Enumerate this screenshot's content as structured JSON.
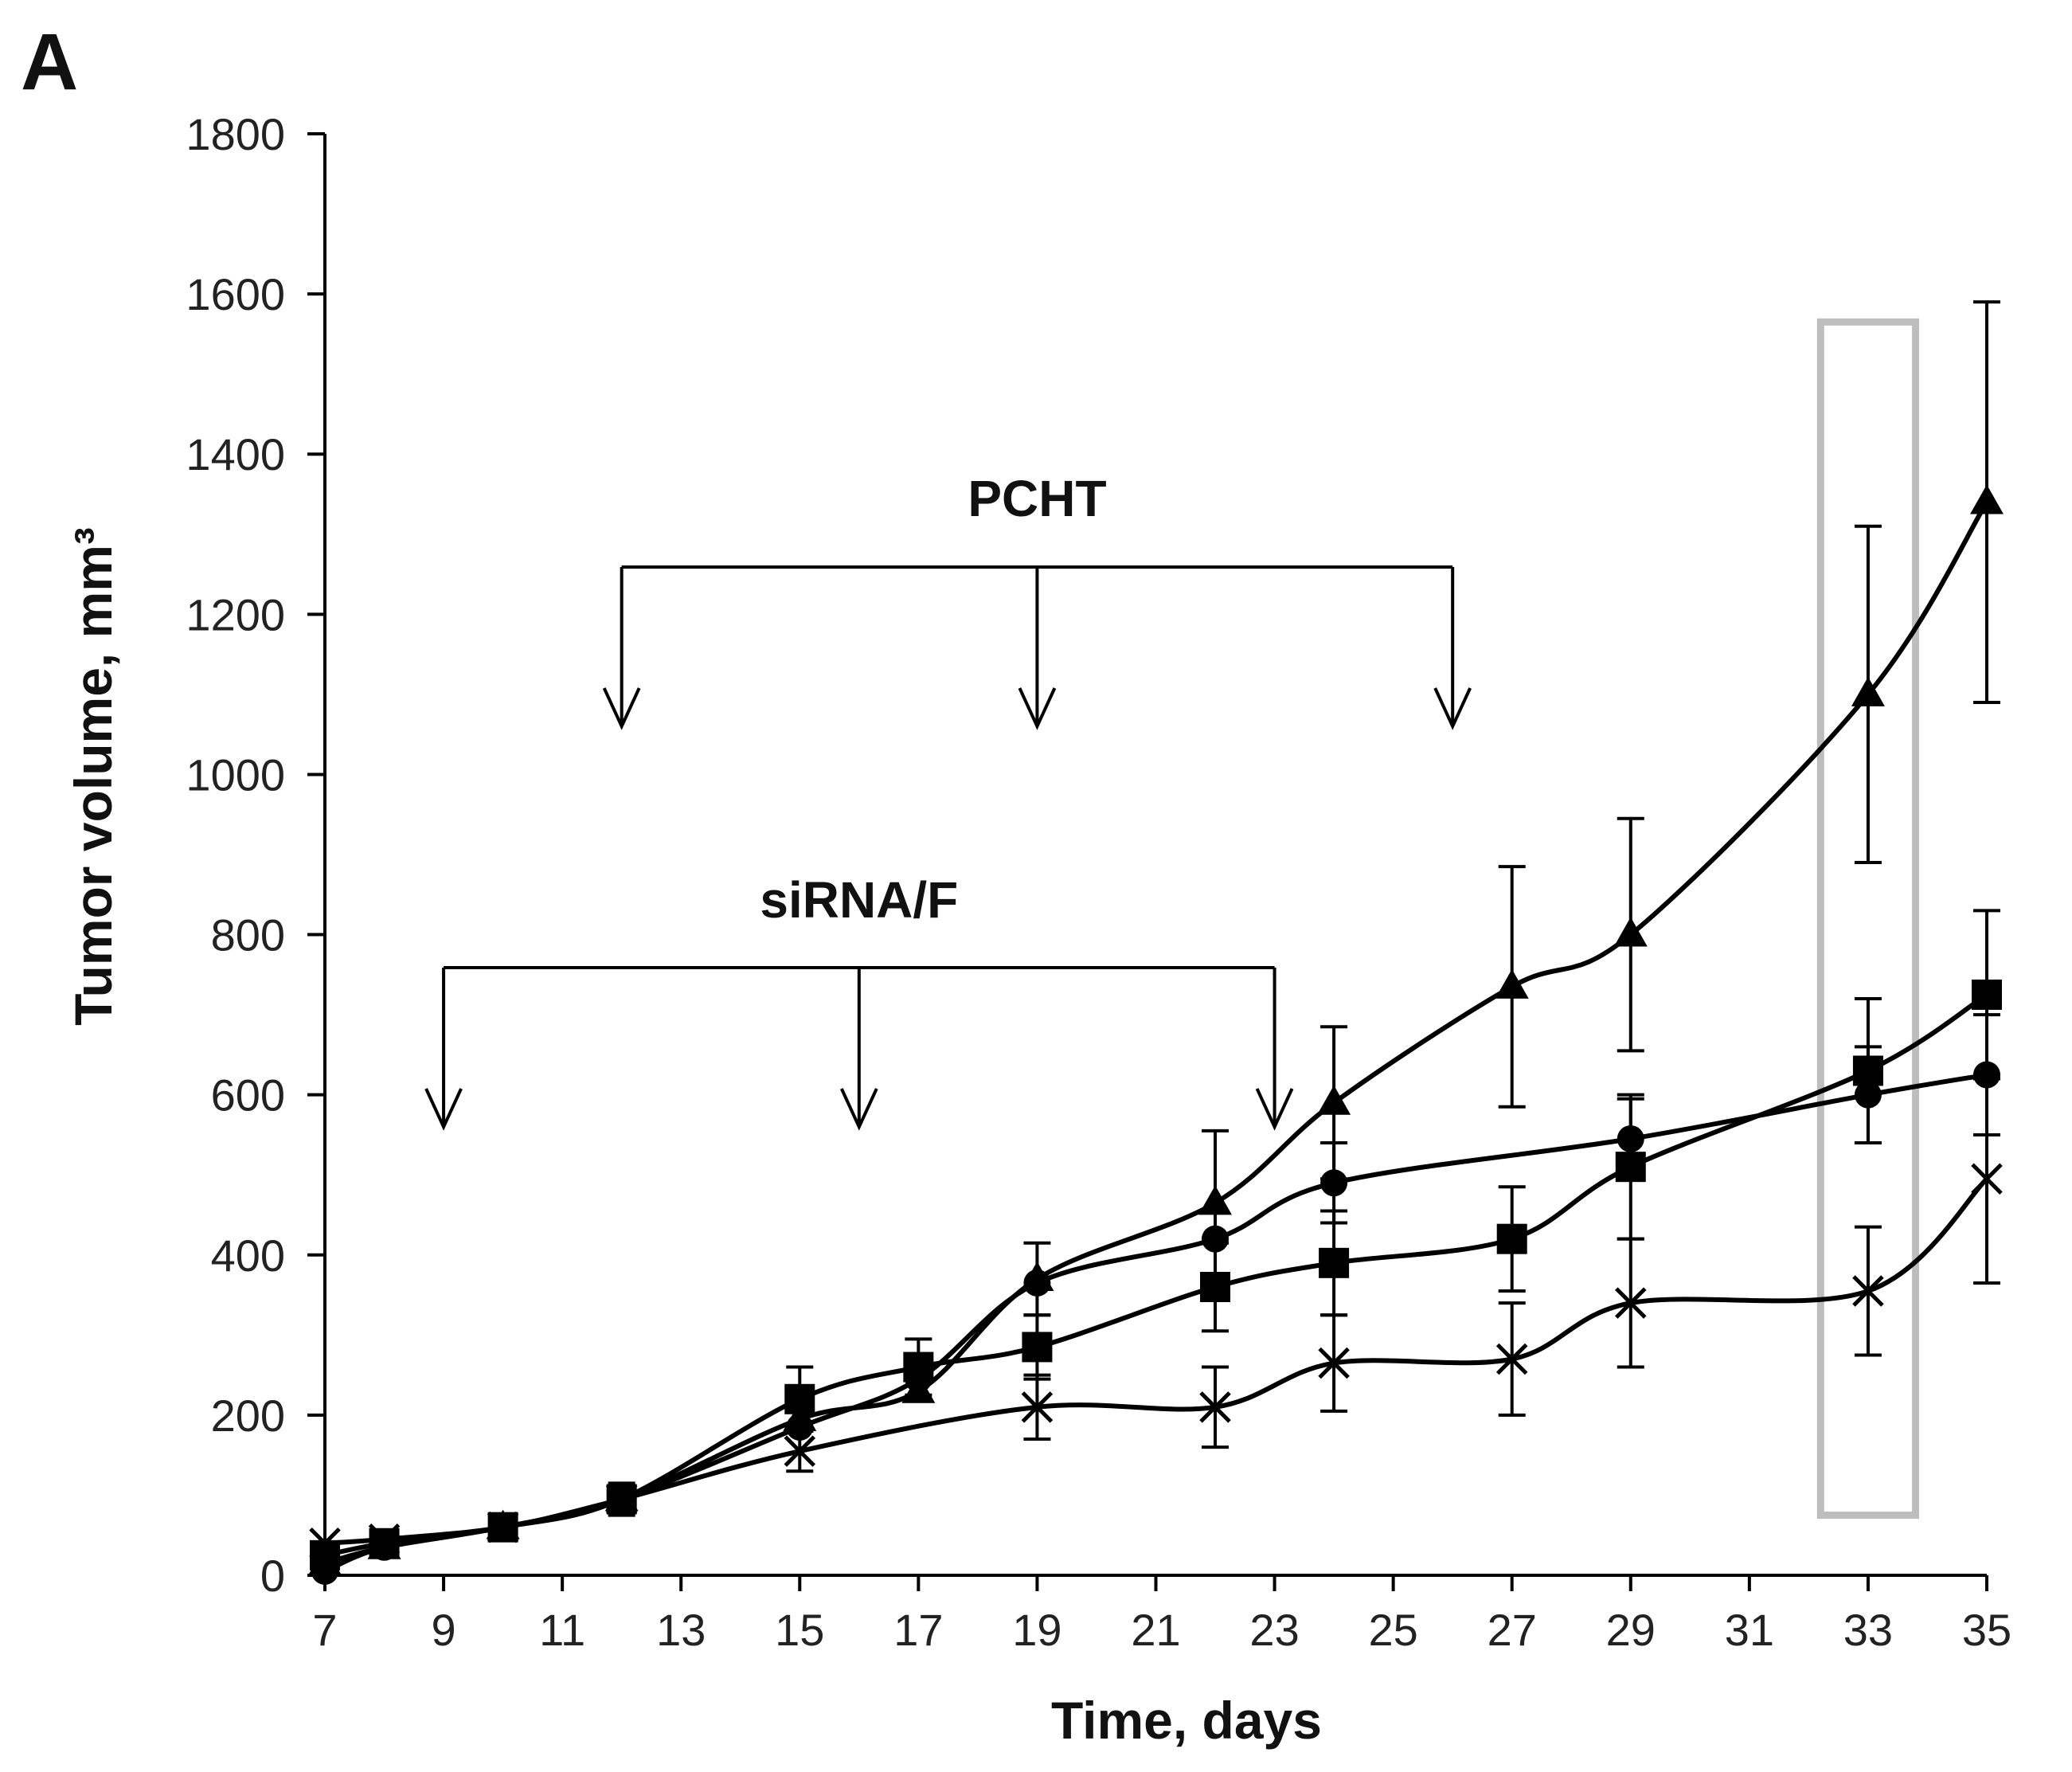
{
  "panel_label": "A",
  "chart_data": {
    "type": "line",
    "title": "",
    "xlabel": "Time, days",
    "ylabel": "Tumor volume, mm³",
    "xlim": [
      7,
      35
    ],
    "ylim": [
      0,
      1800
    ],
    "xticks": [
      7,
      9,
      11,
      13,
      15,
      17,
      19,
      21,
      23,
      25,
      27,
      29,
      31,
      33,
      35
    ],
    "yticks": [
      0,
      200,
      400,
      600,
      800,
      1000,
      1200,
      1400,
      1600,
      1800
    ],
    "series": [
      {
        "name": "triangle",
        "marker": "triangle",
        "x": [
          7,
          8,
          10,
          12,
          15,
          17,
          19,
          22,
          24,
          27,
          29,
          33,
          35
        ],
        "y": [
          15,
          35,
          60,
          95,
          195,
          230,
          370,
          465,
          590,
          735,
          800,
          1100,
          1340
        ],
        "err": [
          0,
          0,
          0,
          0,
          0,
          0,
          45,
          90,
          95,
          150,
          145,
          210,
          250
        ]
      },
      {
        "name": "circle",
        "marker": "circle",
        "x": [
          7,
          8,
          10,
          12,
          15,
          17,
          19,
          22,
          24,
          29,
          33,
          35
        ],
        "y": [
          5,
          35,
          60,
          95,
          185,
          245,
          365,
          420,
          490,
          545,
          600,
          625
        ],
        "err": [
          0,
          0,
          0,
          0,
          0,
          0,
          0,
          0,
          50,
          50,
          60,
          75
        ]
      },
      {
        "name": "square",
        "marker": "square",
        "x": [
          7,
          8,
          10,
          12,
          15,
          17,
          19,
          22,
          24,
          27,
          29,
          33,
          35
        ],
        "y": [
          25,
          40,
          60,
          95,
          220,
          260,
          285,
          360,
          390,
          420,
          510,
          630,
          725
        ],
        "err": [
          0,
          0,
          0,
          20,
          40,
          35,
          40,
          55,
          65,
          65,
          90,
          90,
          105
        ]
      },
      {
        "name": "cross",
        "marker": "x",
        "x": [
          7,
          8,
          10,
          12,
          15,
          19,
          22,
          24,
          27,
          29,
          33,
          35
        ],
        "y": [
          40,
          45,
          60,
          95,
          155,
          210,
          210,
          265,
          270,
          340,
          355,
          495
        ],
        "err": [
          0,
          0,
          0,
          0,
          25,
          40,
          50,
          60,
          70,
          80,
          80,
          130
        ]
      }
    ],
    "annotations": {
      "pcht": {
        "label": "PCHT",
        "days": [
          12,
          19,
          26
        ]
      },
      "sirna": {
        "label": "siRNA/F",
        "days": [
          9,
          16,
          23
        ]
      },
      "highlight": {
        "x_from": 32.2,
        "x_to": 33.8,
        "y_from": 75,
        "y_to": 1565,
        "color": "#bdbdbd"
      }
    }
  }
}
